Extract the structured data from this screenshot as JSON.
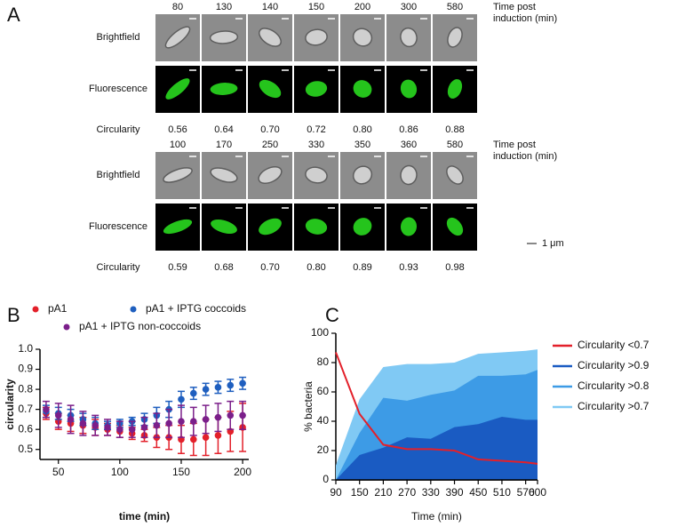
{
  "panel_a": {
    "label": "A",
    "blocks": [
      {
        "times": [
          80,
          130,
          140,
          150,
          200,
          300,
          580
        ],
        "time_header": [
          "Time post",
          "induction (min)"
        ],
        "rows": [
          "Brightfield",
          "Fluorescence"
        ],
        "circularity_label": "Circularity",
        "circularity": [
          "0.56",
          "0.64",
          "0.70",
          "0.72",
          "0.80",
          "0.86",
          "0.88"
        ]
      },
      {
        "times": [
          100,
          170,
          250,
          330,
          350,
          360,
          580
        ],
        "time_header": [
          "Time post",
          "induction (min)"
        ],
        "rows": [
          "Brightfield",
          "Fluorescence"
        ],
        "circularity_label": "Circularity",
        "circularity": [
          "0.59",
          "0.68",
          "0.70",
          "0.80",
          "0.89",
          "0.93",
          "0.98"
        ]
      }
    ],
    "scale_bar": "1 μm"
  },
  "chart_data": [
    {
      "type": "scatter",
      "panel_label": "B",
      "xlabel": "time (min)",
      "ylabel": "circularity",
      "x": [
        40,
        50,
        60,
        70,
        80,
        90,
        100,
        110,
        120,
        130,
        140,
        150,
        160,
        170,
        180,
        190,
        200
      ],
      "xlim": [
        35,
        205
      ],
      "xticks": [
        50,
        100,
        150,
        200
      ],
      "ylim": [
        0.45,
        1.0
      ],
      "yticks": [
        0.5,
        0.6,
        0.7,
        0.8,
        0.9,
        {
          "value": 1,
          "label": "1.0"
        }
      ],
      "series": [
        {
          "name": "pA1",
          "color": "#e3202a",
          "values": [
            0.68,
            0.64,
            0.63,
            0.62,
            0.61,
            0.6,
            0.59,
            0.58,
            0.57,
            0.56,
            0.56,
            0.55,
            0.55,
            0.56,
            0.57,
            0.59,
            0.61
          ],
          "errors": [
            0.03,
            0.04,
            0.04,
            0.04,
            0.04,
            0.03,
            0.03,
            0.03,
            0.03,
            0.05,
            0.06,
            0.07,
            0.08,
            0.09,
            0.09,
            0.1,
            0.12
          ]
        },
        {
          "name": "pA1 + IPTG coccoids",
          "color": "#1f5fbf",
          "values": [
            0.69,
            0.68,
            0.67,
            0.65,
            0.63,
            0.62,
            0.63,
            0.64,
            0.65,
            0.67,
            0.7,
            0.75,
            0.78,
            0.8,
            0.81,
            0.82,
            0.83
          ],
          "errors": [
            0.03,
            0.03,
            0.03,
            0.03,
            0.03,
            0.02,
            0.02,
            0.02,
            0.03,
            0.04,
            0.04,
            0.04,
            0.03,
            0.03,
            0.03,
            0.03,
            0.03
          ]
        },
        {
          "name": "pA1 + IPTG non-coccoids",
          "color": "#7b1f8a",
          "values": [
            0.7,
            0.67,
            0.65,
            0.63,
            0.62,
            0.61,
            0.6,
            0.6,
            0.61,
            0.62,
            0.63,
            0.64,
            0.64,
            0.65,
            0.66,
            0.67,
            0.67
          ],
          "errors": [
            0.04,
            0.06,
            0.07,
            0.06,
            0.05,
            0.04,
            0.04,
            0.04,
            0.05,
            0.06,
            0.07,
            0.08,
            0.07,
            0.07,
            0.07,
            0.07,
            0.07
          ]
        }
      ]
    },
    {
      "type": "area",
      "panel_label": "C",
      "xlabel": "Time (min)",
      "ylabel": "% bacteria",
      "x": [
        90,
        150,
        210,
        270,
        330,
        390,
        450,
        510,
        570,
        600
      ],
      "xlim": [
        90,
        600
      ],
      "xticks": [
        90,
        150,
        210,
        270,
        330,
        390,
        450,
        510,
        570,
        600
      ],
      "ylim": [
        0,
        100
      ],
      "yticks": [
        0,
        20,
        40,
        60,
        80,
        100
      ],
      "legend": "right",
      "series": [
        {
          "name": "Circularity <0.7",
          "color": "#e3202a",
          "style": "line",
          "values": [
            87,
            45,
            24,
            21,
            21,
            20,
            14,
            13,
            12,
            11
          ]
        },
        {
          "name": "Circularity >0.9",
          "color": "#1a5bc2",
          "style": "area",
          "values": [
            0,
            17,
            22,
            29,
            28,
            36,
            38,
            43,
            41,
            41
          ]
        },
        {
          "name": "Circularity >0.8",
          "color": "#3d9be6",
          "style": "area",
          "values": [
            0,
            32,
            56,
            54,
            58,
            61,
            71,
            71,
            72,
            75
          ]
        },
        {
          "name": "Circularity >0.7",
          "color": "#80c9f4",
          "style": "area",
          "values": [
            10,
            55,
            77,
            79,
            79,
            80,
            86,
            87,
            88,
            89
          ]
        }
      ]
    }
  ]
}
